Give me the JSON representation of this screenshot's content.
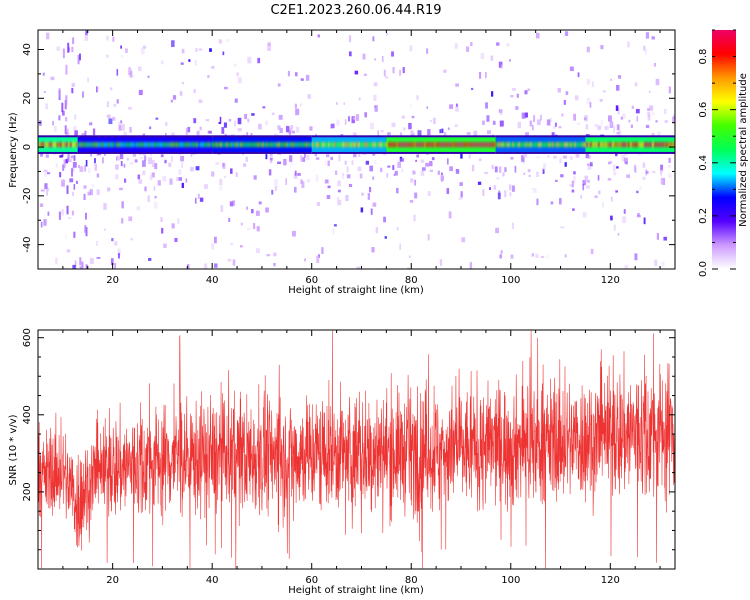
{
  "figure": {
    "title": "C2E1.2023.260.06.44.R19"
  },
  "colors": {
    "snr_line": "#ee3333",
    "spectrum_ridge": "#ff1a1a",
    "background": "#ffffff"
  },
  "chart_data": [
    {
      "type": "heatmap",
      "xlabel": "Height of straight line (km)",
      "ylabel": "Frequency (Hz)",
      "xlim": [
        5,
        133
      ],
      "ylim": [
        -50,
        48
      ],
      "x_ticks": [
        20,
        40,
        60,
        80,
        100,
        120
      ],
      "y_ticks": [
        -40,
        -20,
        0,
        20,
        40
      ],
      "colorbar": {
        "label": "Normalized spectral amplitude",
        "range": [
          0.0,
          0.9
        ],
        "ticks": [
          "0.0",
          "0.2",
          "0.4",
          "0.6",
          "0.8"
        ],
        "colormap": [
          "#ffffff",
          "#cc99ff",
          "#5500ff",
          "#0000ff",
          "#00ffff",
          "#00ff55",
          "#44ff00",
          "#ffff00",
          "#ff9900",
          "#ff0000",
          "#ee0066"
        ]
      },
      "ridge": {
        "center_frequency_hz": 1,
        "half_width_hz": 3,
        "segments": [
          {
            "x": [
              5,
              13
            ],
            "amplitude": 0.75
          },
          {
            "x": [
              13,
              40
            ],
            "amplitude": 0.45
          },
          {
            "x": [
              40,
              60
            ],
            "amplitude": 0.5
          },
          {
            "x": [
              60,
              75
            ],
            "amplitude": 0.6
          },
          {
            "x": [
              75,
              97
            ],
            "amplitude": 0.88
          },
          {
            "x": [
              97,
              115
            ],
            "amplitude": 0.55
          },
          {
            "x": [
              115,
              133
            ],
            "amplitude": 0.8
          }
        ]
      },
      "grid": false
    },
    {
      "type": "line",
      "xlabel": "Height of straight line (km)",
      "ylabel": "SNR (10 * v/v)",
      "xlim": [
        5,
        133
      ],
      "ylim": [
        0,
        620
      ],
      "x_ticks": [
        20,
        40,
        60,
        80,
        100,
        120
      ],
      "y_ticks": [
        200,
        400,
        600
      ],
      "series": [
        {
          "x": [
            5,
            10,
            13,
            16,
            20,
            30,
            40,
            50,
            60,
            70,
            80,
            90,
            100,
            110,
            120,
            125,
            133
          ],
          "mean": [
            240,
            255,
            170,
            240,
            260,
            285,
            290,
            295,
            300,
            300,
            305,
            310,
            325,
            330,
            345,
            355,
            360
          ],
          "spread": [
            90,
            95,
            120,
            100,
            110,
            120,
            125,
            125,
            125,
            125,
            125,
            125,
            130,
            130,
            140,
            145,
            150
          ],
          "peak": {
            "x": 33.5,
            "y": 605
          }
        }
      ],
      "grid": false
    }
  ]
}
